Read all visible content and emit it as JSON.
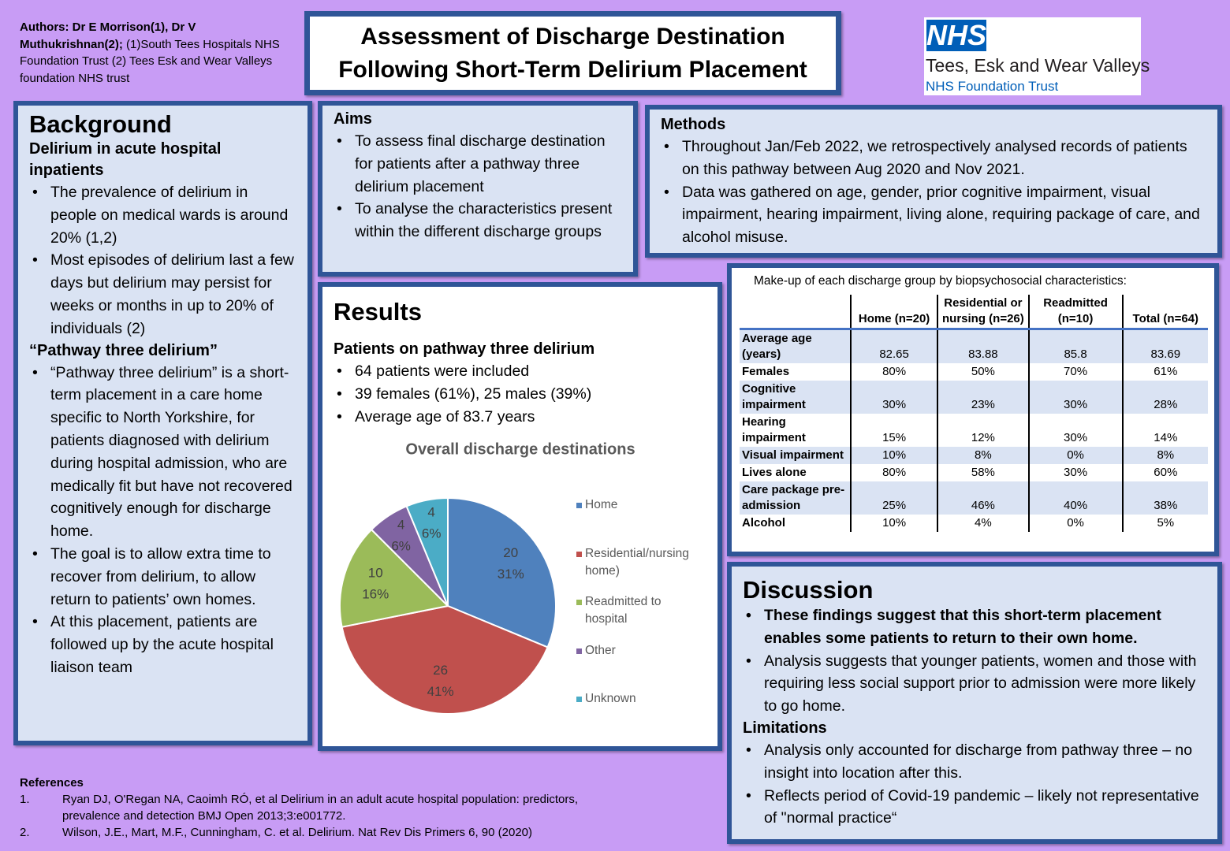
{
  "authors": {
    "names": "Authors: Dr E Morrison(1), Dr V Muthukrishnan(2);",
    "affiliations": "(1)South Tees Hospitals NHS Foundation Trust (2) Tees Esk and Wear Valleys foundation NHS trust"
  },
  "title": "Assessment of Discharge Destination Following Short-Term Delirium Placement",
  "logo": {
    "mark": "NHS",
    "name": "Tees, Esk and Wear Valleys",
    "trust": "NHS Foundation Trust"
  },
  "background": {
    "heading": "Background",
    "sections": [
      {
        "subheading": "Delirium in acute hospital inpatients",
        "bullets": [
          "The prevalence of delirium in people on medical wards is around 20% (1,2)",
          "Most episodes of delirium last a few days but delirium may persist for weeks or months in up to 20% of individuals (2)"
        ]
      },
      {
        "subheading": "“Pathway three delirium”",
        "bullets": [
          "“Pathway three delirium” is a short-term placement in a care home specific to North Yorkshire, for patients diagnosed with delirium during hospital admission, who are medically fit but have not recovered cognitively enough for discharge home.",
          "The goal is to allow extra time to recover from delirium, to allow return to patients’ own homes.",
          "At this placement, patients are followed up by the acute hospital liaison team"
        ]
      }
    ]
  },
  "aims": {
    "heading": "Aims",
    "bullets": [
      "To assess final discharge destination for patients after a pathway three delirium placement",
      "To analyse the characteristics present within the different discharge groups"
    ]
  },
  "methods": {
    "heading": "Methods",
    "bullets": [
      "Throughout Jan/Feb 2022, we retrospectively analysed records of patients on this pathway between Aug 2020 and Nov 2021.",
      "Data was gathered on age, gender, prior cognitive impairment, visual impairment, hearing impairment, living alone, requiring package of care, and alcohol misuse."
    ]
  },
  "results": {
    "heading": "Results",
    "subheading": "Patients on pathway three delirium",
    "bullets": [
      "64 patients were included",
      "39 females (61%), 25 males (39%)",
      "Average age of 83.7 years"
    ]
  },
  "chart_data": {
    "type": "pie",
    "title": "Overall discharge destinations",
    "categories": [
      "Home",
      "Residential/nursing home)",
      "Readmitted to hospital",
      "Other",
      "Unknown"
    ],
    "values": [
      20,
      26,
      10,
      4,
      4
    ],
    "percent_labels": [
      "31%",
      "41%",
      "16%",
      "6%",
      "6%"
    ],
    "colors": [
      "#4f81bd",
      "#c0504d",
      "#9bbb59",
      "#8064a2",
      "#4bacc6"
    ]
  },
  "table": {
    "caption": "Make-up of each discharge group by biopsychosocial characteristics:",
    "columns": [
      "Home (n=20)",
      "Residential or nursing (n=26)",
      "Readmitted (n=10)",
      "Total (n=64)"
    ],
    "rows": [
      [
        "Average age (years)",
        "82.65",
        "83.88",
        "85.8",
        "83.69"
      ],
      [
        "Females",
        "80%",
        "50%",
        "70%",
        "61%"
      ],
      [
        "Cognitive impairment",
        "30%",
        "23%",
        "30%",
        "28%"
      ],
      [
        "Hearing impairment",
        "15%",
        "12%",
        "30%",
        "14%"
      ],
      [
        "Visual impairment",
        "10%",
        "8%",
        "0%",
        "8%"
      ],
      [
        "Lives alone",
        "80%",
        "58%",
        "30%",
        "60%"
      ],
      [
        "Care package pre-admission",
        "25%",
        "46%",
        "40%",
        "38%"
      ],
      [
        "Alcohol",
        "10%",
        "4%",
        "0%",
        "5%"
      ]
    ]
  },
  "discussion": {
    "heading": "Discussion",
    "bullets": [
      "These findings suggest that this short-term placement enables some patients to return to their own home.",
      "Analysis suggests that younger patients, women and those with requiring less social support prior to admission were more likely to go home."
    ],
    "limitations_heading": "Limitations",
    "limitations": [
      "Analysis only accounted for discharge from pathway three – no insight into location after this.",
      "Reflects period of Covid-19 pandemic – likely not representative of \"normal practice“"
    ]
  },
  "references": {
    "heading": "References",
    "items": [
      {
        "num": "1.",
        "text": "Ryan DJ, O'Regan NA, Caoimh RÓ, et al Delirium in an adult acute hospital population: predictors, prevalence and detection BMJ Open 2013;3:e001772."
      },
      {
        "num": "2.",
        "text": "Wilson, J.E., Mart, M.F., Cunningham, C. et al. Delirium. Nat Rev Dis Primers 6, 90 (2020)"
      }
    ]
  }
}
